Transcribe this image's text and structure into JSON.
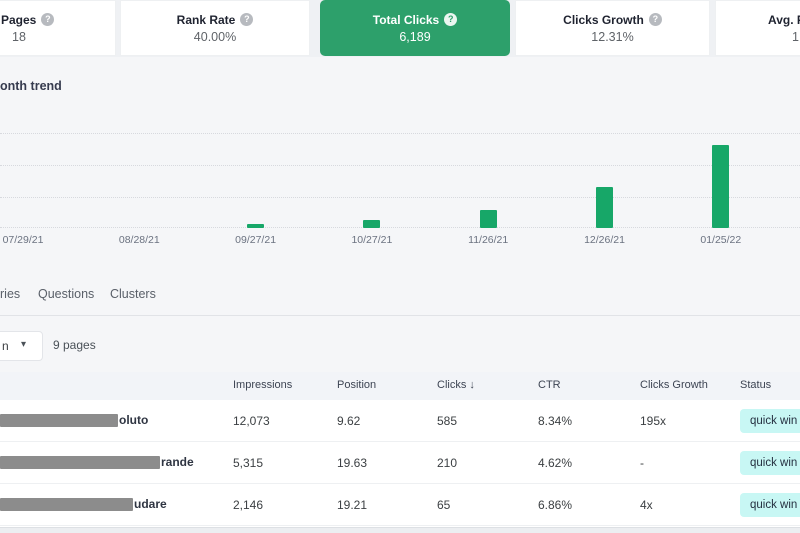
{
  "colors": {
    "accent_green": "#2da06b",
    "bar_green": "#17a768",
    "badge_bg": "#c8f7f4",
    "redaction_gray": "#8c8c8c",
    "section_bg": "#f5f6f8"
  },
  "help_icon": "?",
  "cards": [
    {
      "label": "ed Pages",
      "value": "18",
      "selected": false
    },
    {
      "label": "Rank Rate",
      "value": "40.00%",
      "selected": false
    },
    {
      "label": "Total Clicks",
      "value": "6,189",
      "selected": true
    },
    {
      "label": "Clicks Growth",
      "value": "12.31%",
      "selected": false
    },
    {
      "label": "Avg. P",
      "value": "1",
      "selected": false
    }
  ],
  "chart": {
    "title": "onth trend"
  },
  "chart_data": {
    "type": "bar",
    "title": "onth trend",
    "categories": [
      "07/29/21",
      "08/28/21",
      "09/27/21",
      "10/27/21",
      "11/26/21",
      "12/26/21",
      "01/25/22"
    ],
    "values": [
      0,
      0,
      130,
      260,
      580,
      1320,
      2680
    ],
    "xlabel": "",
    "ylabel": "",
    "ylim": [
      0,
      3200
    ],
    "grid": "dotted horizontal",
    "legend": "none",
    "note_precision": "values estimated from bar heights; no y-axis labels visible"
  },
  "tabs": [
    {
      "label": "ries"
    },
    {
      "label": "Questions"
    },
    {
      "label": "Clusters"
    }
  ],
  "filter": {
    "dropdown_value": "n",
    "chevron": "▾",
    "pages_count": "9 pages"
  },
  "table": {
    "columns": [
      "Impressions",
      "Position",
      "Clicks",
      "CTR",
      "Clicks Growth",
      "Status"
    ],
    "sort_column": "Clicks",
    "sort_arrow": "↓",
    "rows": [
      {
        "name_fragment": "oluto",
        "redaction_width": 118,
        "impressions": "12,073",
        "position": "9.62",
        "clicks": "585",
        "ctr": "8.34%",
        "clicks_growth": "195x",
        "status": "quick win"
      },
      {
        "name_fragment": "rande",
        "redaction_width": 160,
        "impressions": "5,315",
        "position": "19.63",
        "clicks": "210",
        "ctr": "4.62%",
        "clicks_growth": "-",
        "status": "quick win"
      },
      {
        "name_fragment": "udare",
        "redaction_width": 133,
        "impressions": "2,146",
        "position": "19.21",
        "clicks": "65",
        "ctr": "6.86%",
        "clicks_growth": "4x",
        "status": "quick win"
      }
    ]
  }
}
